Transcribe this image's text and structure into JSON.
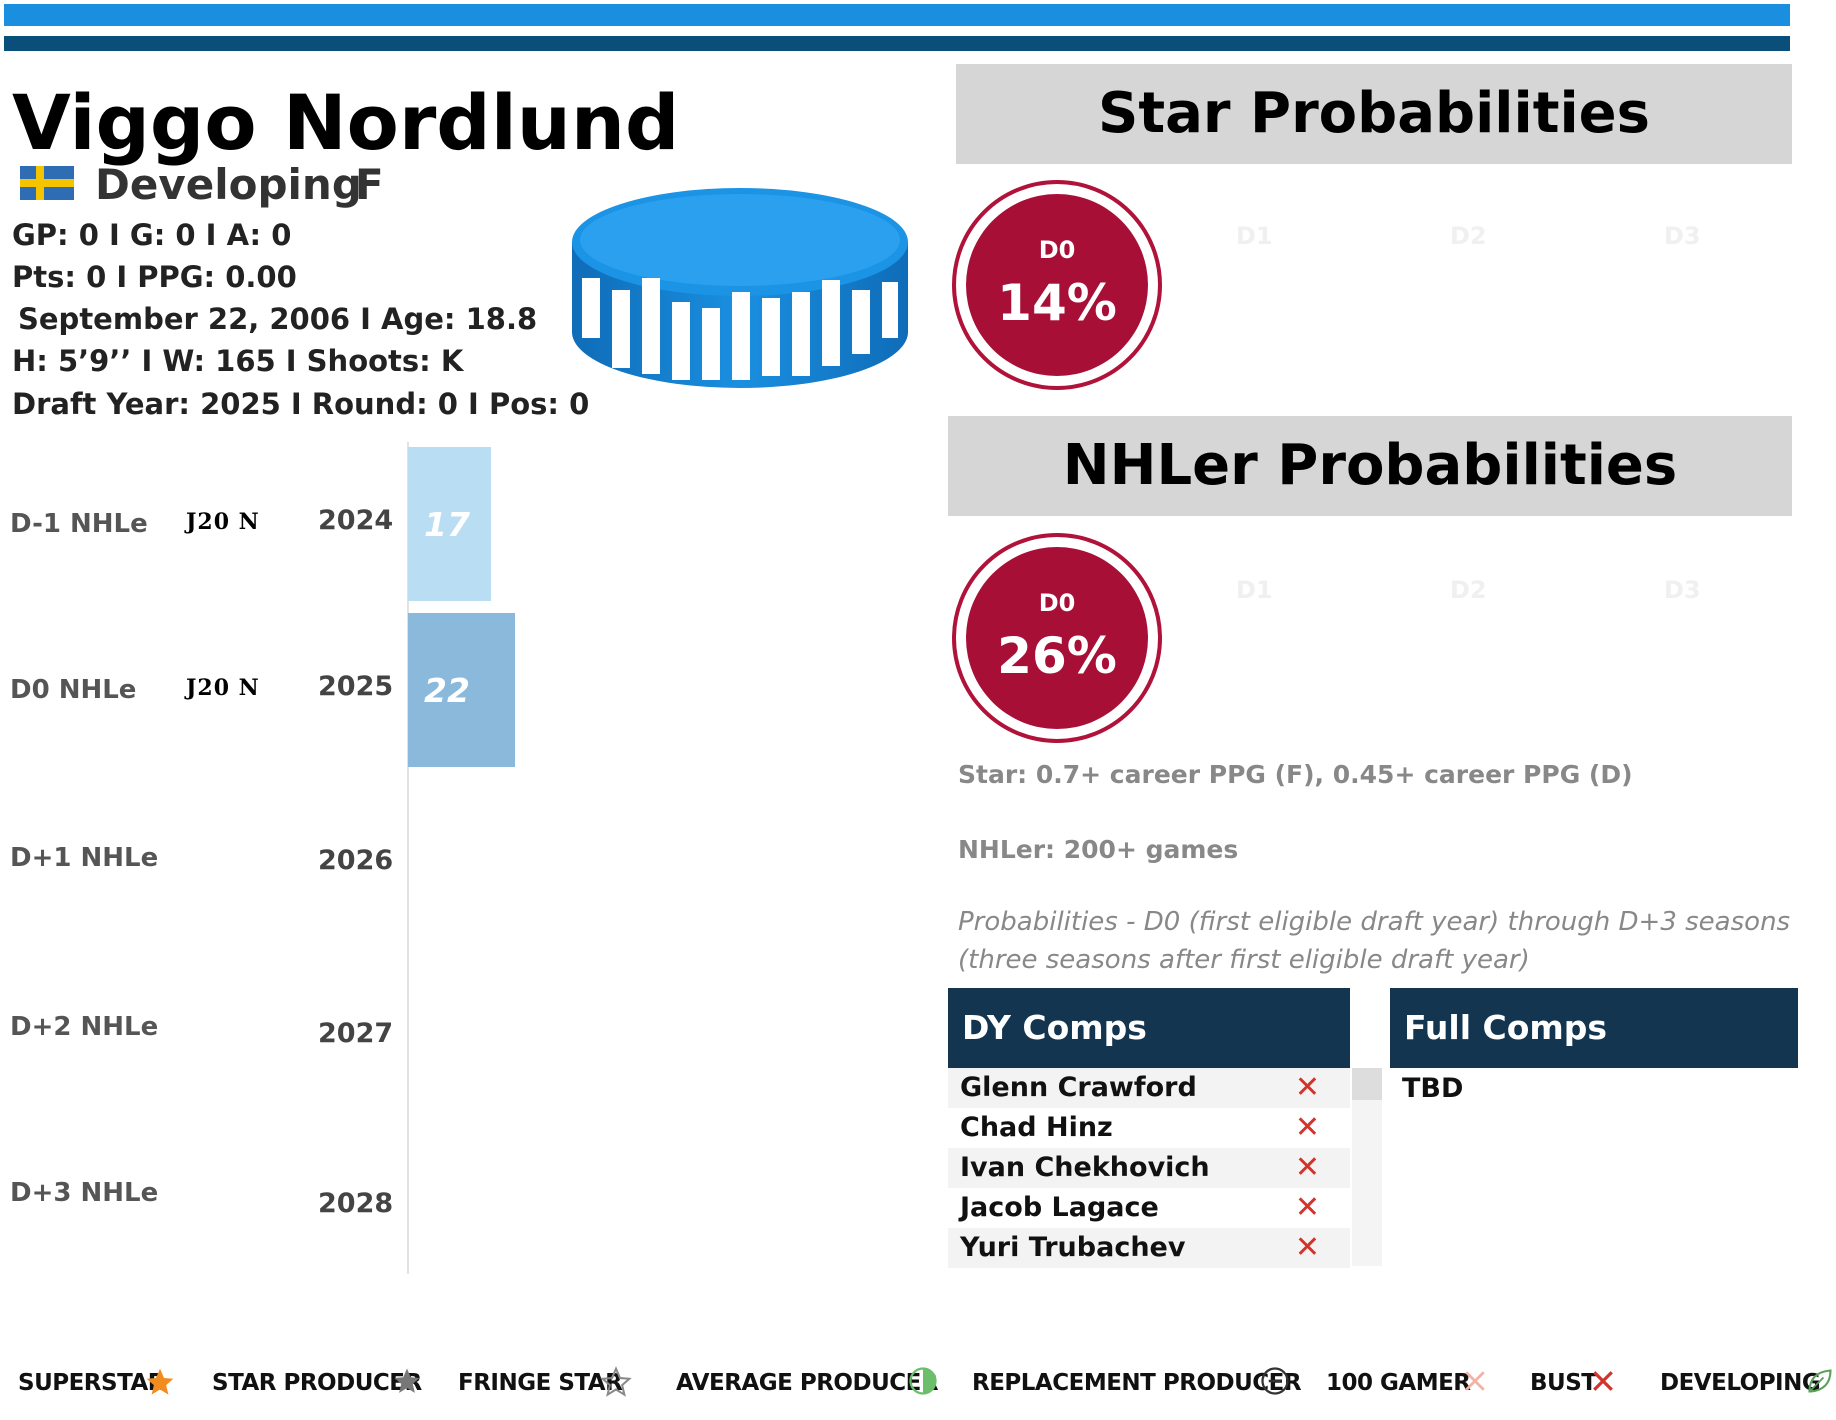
{
  "player": {
    "name": "Viggo Nordlund",
    "status": "Developing",
    "position": "F",
    "stats_line1": "GP: 0 I G: 0 I A: 0",
    "stats_line2": "Pts: 0 I PPG: 0.00",
    "stats_line3": "September 22, 2006 I Age: 18.8",
    "stats_line4": "H: 5’9’’ I W: 165 I Shoots: K",
    "stats_line5": "Draft Year: 2025 I Round: 0 I Pos: 0"
  },
  "nhle": {
    "rows": [
      {
        "label": "D-1 NHLe",
        "league": "J20 N",
        "year": "2024",
        "value": 17,
        "display": "17",
        "color": "#b9def3"
      },
      {
        "label": "D0 NHLe",
        "league": "J20 N",
        "year": "2025",
        "value": 22,
        "display": "22",
        "color": "#8ab9dc"
      },
      {
        "label": "D+1 NHLe",
        "league": "",
        "year": "2026"
      },
      {
        "label": "D+2 NHLe",
        "league": "",
        "year": "2027"
      },
      {
        "label": "D+3 NHLe",
        "league": "",
        "year": "2028"
      }
    ]
  },
  "star": {
    "title": "Star Probabilities",
    "d0_label": "D0",
    "d0_value": "14%",
    "d1": "D1",
    "d2": "D2",
    "d3": "D3"
  },
  "nhler": {
    "title": "NHLer Probabilities",
    "d0_label": "D0",
    "d0_value": "26%",
    "d1": "D1",
    "d2": "D2",
    "d3": "D3"
  },
  "notes": {
    "star_def": "Star: 0.7+ career PPG (F), 0.45+ career PPG (D)",
    "nhler_def": "NHLer: 200+ games",
    "prob_line1": "Probabilities - D0 (first eligible draft year) through D+3 seasons",
    "prob_line2": "(three seasons after first eligible draft year)"
  },
  "dy_comps": {
    "title": "DY Comps",
    "items": [
      "Glenn Crawford",
      "Chad Hinz",
      "Ivan Chekhovich",
      "Jacob Lagace",
      "Yuri Trubachev"
    ],
    "mark": "✕"
  },
  "full_comps": {
    "title": "Full Comps",
    "value": "TBD"
  },
  "legend": {
    "superstar": "SUPERSTAR",
    "star_producer": "STAR PRODUCER",
    "fringe_star": "FRINGE STAR",
    "average_producer": "AVERAGE PRODUCER",
    "replacement_producer": "REPLACEMENT PRODUCER",
    "gamer_100": "100 GAMER",
    "bust": "BUST",
    "developing": "DEVELOPING"
  },
  "colors": {
    "top_bar": "#1a8fe0",
    "top_bar_dark": "#0a4f7a",
    "prob_circle": "#a80f36",
    "comps_header": "#14354f"
  }
}
